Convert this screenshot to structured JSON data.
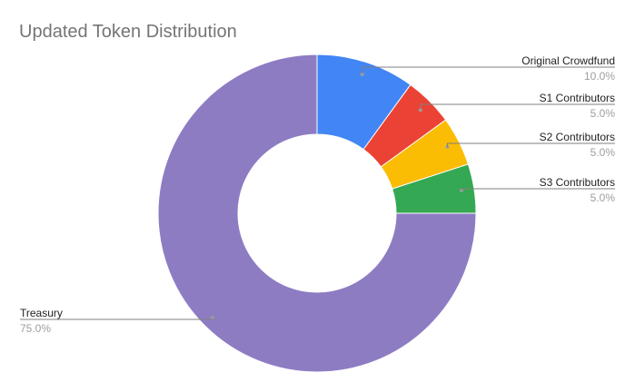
{
  "chart_data": {
    "type": "pie",
    "donut": true,
    "title": "Updated Token Distribution",
    "categories": [
      "Original Crowdfund",
      "S1 Contributors",
      "S2 Contributors",
      "S3 Contributors",
      "Treasury"
    ],
    "values": [
      10.0,
      5.0,
      5.0,
      5.0,
      75.0
    ],
    "data_labels": [
      "10.0%",
      "5.0%",
      "5.0%",
      "5.0%",
      "75.0%"
    ],
    "colors": [
      "#4285f4",
      "#ea4335",
      "#fbbc04",
      "#34a853",
      "#8e7cc3"
    ],
    "legend": "none",
    "start_angle_deg": 0,
    "direction": "clockwise"
  }
}
